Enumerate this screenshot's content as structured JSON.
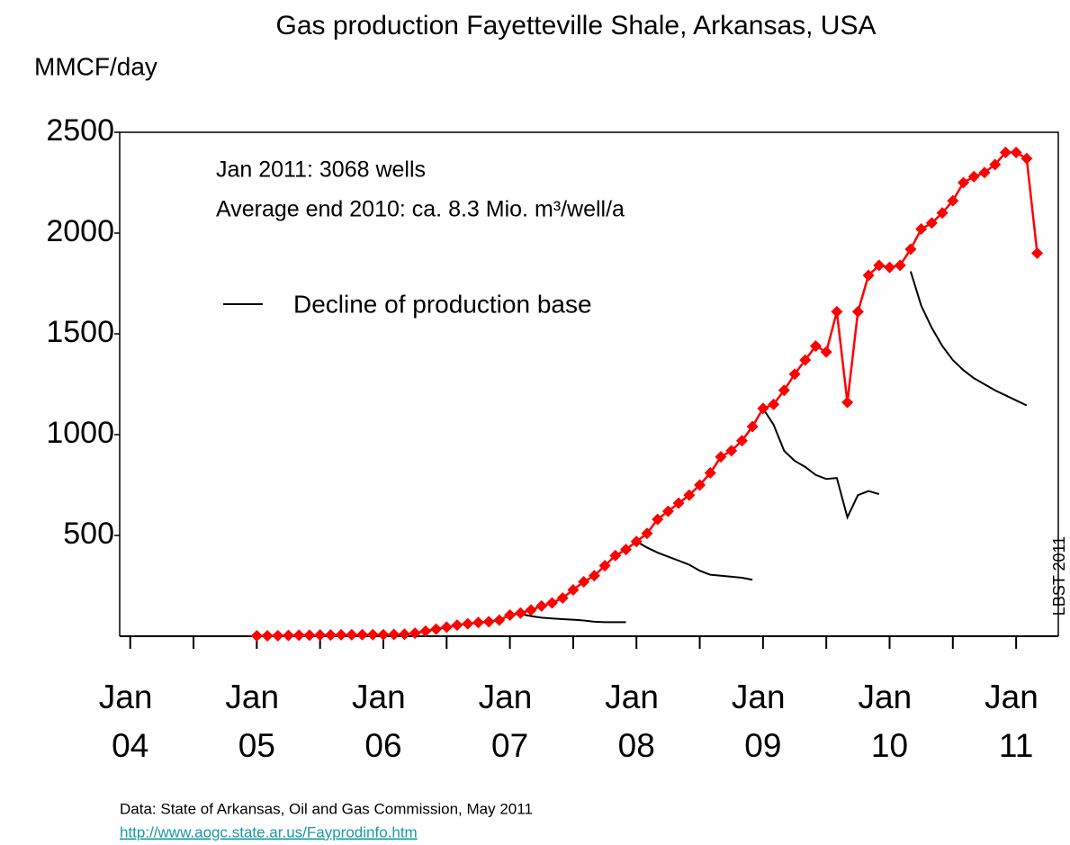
{
  "chart_data": {
    "type": "line",
    "title": "Gas production Fayetteville Shale, Arkansas, USA",
    "y_label": "MMCF/day",
    "annotations": [
      "Jan 2011: 3068 wells",
      "Average end 2010: ca. 8.3 Mio. m³/well/a"
    ],
    "credit": "LBST 2011",
    "source": "Data: State of Arkansas, Oil and Gas Commission, May 2011",
    "source_link": "http://www.aogc.state.ar.us/Fayprodinfo.htm",
    "ylim": [
      0,
      2500
    ],
    "yticks": [
      500,
      1000,
      1500,
      2000,
      2500
    ],
    "xlim": [
      "2003-12",
      "2011-05"
    ],
    "xticks": [
      {
        "value": "2004-01",
        "label": "Jan 04"
      },
      {
        "value": "2005-01",
        "label": "Jan 05"
      },
      {
        "value": "2006-01",
        "label": "Jan 06"
      },
      {
        "value": "2007-01",
        "label": "Jan 07"
      },
      {
        "value": "2008-01",
        "label": "Jan 08"
      },
      {
        "value": "2009-01",
        "label": "Jan 09"
      },
      {
        "value": "2010-01",
        "label": "Jan 10"
      },
      {
        "value": "2011-01",
        "label": "Jan 11"
      }
    ],
    "xminor_ticks": [
      "2004-07",
      "2005-07",
      "2006-07",
      "2007-07",
      "2008-07",
      "2009-07",
      "2010-07"
    ],
    "series": [
      {
        "color": "#ff0000",
        "x": [
          "2005-01",
          "2005-02",
          "2005-03",
          "2005-04",
          "2005-05",
          "2005-06",
          "2005-07",
          "2005-08",
          "2005-09",
          "2005-10",
          "2005-11",
          "2005-12",
          "2006-01",
          "2006-02",
          "2006-03",
          "2006-04",
          "2006-05",
          "2006-06",
          "2006-07",
          "2006-08",
          "2006-09",
          "2006-10",
          "2006-11",
          "2006-12",
          "2007-01",
          "2007-02",
          "2007-03",
          "2007-04",
          "2007-05",
          "2007-06",
          "2007-07",
          "2007-08",
          "2007-09",
          "2007-10",
          "2007-11",
          "2007-12",
          "2008-01",
          "2008-02",
          "2008-03",
          "2008-04",
          "2008-05",
          "2008-06",
          "2008-07",
          "2008-08",
          "2008-09",
          "2008-10",
          "2008-11",
          "2008-12",
          "2009-01",
          "2009-02",
          "2009-03",
          "2009-04",
          "2009-05",
          "2009-06",
          "2009-07",
          "2009-08",
          "2009-09",
          "2009-10",
          "2009-11",
          "2009-12",
          "2010-01",
          "2010-02",
          "2010-03",
          "2010-04",
          "2010-05",
          "2010-06",
          "2010-07",
          "2010-08",
          "2010-09",
          "2010-10",
          "2010-11",
          "2010-12",
          "2011-01",
          "2011-02",
          "2011-03"
        ],
        "values": [
          2,
          2,
          3,
          4,
          5,
          5,
          6,
          6,
          7,
          7,
          8,
          8,
          8,
          9,
          10,
          15,
          25,
          35,
          45,
          55,
          62,
          68,
          72,
          80,
          105,
          115,
          130,
          150,
          165,
          190,
          230,
          270,
          300,
          350,
          400,
          430,
          470,
          510,
          580,
          620,
          660,
          700,
          750,
          810,
          890,
          920,
          970,
          1040,
          1130,
          1150,
          1220,
          1300,
          1370,
          1440,
          1410,
          1610,
          1160,
          1610,
          1790,
          1840,
          1830,
          1840,
          1920,
          2020,
          2050,
          2100,
          2160,
          2250,
          2280,
          2300,
          2340,
          2400,
          2400,
          2370,
          1900
        ]
      }
    ],
    "decline": {
      "name": "Decline of production base",
      "color": "#000000",
      "lines": [
        {
          "x": [
            "2007-02",
            "2007-03",
            "2007-04",
            "2007-05",
            "2007-06",
            "2007-07",
            "2007-08",
            "2007-09",
            "2007-10",
            "2007-11",
            "2007-12"
          ],
          "values": [
            110,
            100,
            92,
            88,
            85,
            82,
            78,
            72,
            70,
            70,
            70
          ]
        },
        {
          "x": [
            "2008-01",
            "2008-02",
            "2008-03",
            "2008-04",
            "2008-05",
            "2008-06",
            "2008-07",
            "2008-08",
            "2008-09",
            "2008-10",
            "2008-11",
            "2008-12"
          ],
          "values": [
            470,
            440,
            415,
            395,
            375,
            355,
            325,
            305,
            300,
            295,
            290,
            280
          ]
        },
        {
          "x": [
            "2009-01",
            "2009-02",
            "2009-03",
            "2009-04",
            "2009-05",
            "2009-06",
            "2009-07",
            "2009-08",
            "2009-09",
            "2009-10",
            "2009-11",
            "2009-12"
          ],
          "values": [
            1130,
            1050,
            920,
            870,
            840,
            800,
            780,
            785,
            590,
            700,
            720,
            705
          ]
        },
        {
          "x": [
            "2010-03",
            "2010-04",
            "2010-05",
            "2010-06",
            "2010-07",
            "2010-08",
            "2010-09",
            "2010-10",
            "2010-11",
            "2010-12",
            "2011-01",
            "2011-02"
          ],
          "values": [
            1810,
            1640,
            1530,
            1440,
            1370,
            1320,
            1280,
            1250,
            1220,
            1195,
            1170,
            1145
          ]
        }
      ]
    }
  }
}
